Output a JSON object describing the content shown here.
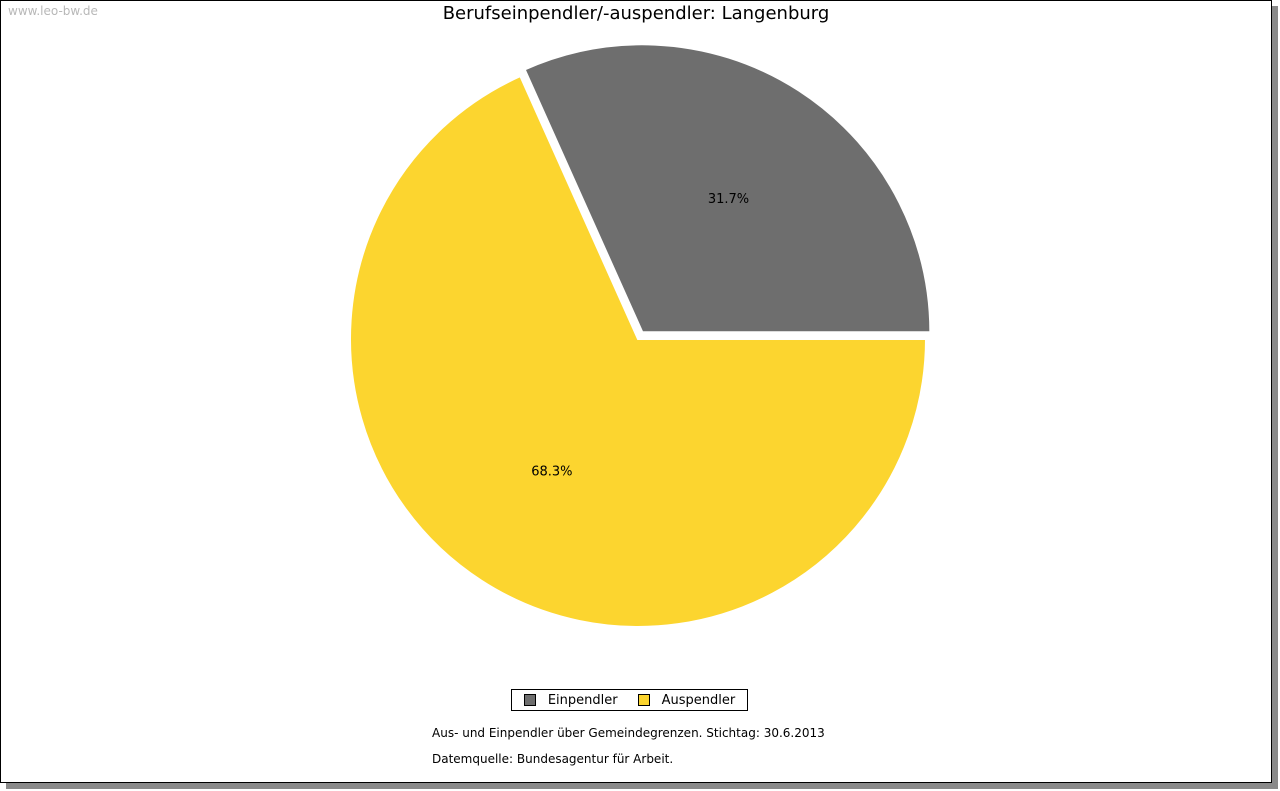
{
  "watermark": "www.leo-bw.de",
  "chart_data": {
    "type": "pie",
    "title": "Berufseinpendler/-auspendler: Langenburg",
    "slices": [
      {
        "name": "Einpendler",
        "value": 31.7,
        "label": "31.7%",
        "color": "#6e6e6e"
      },
      {
        "name": "Auspendler",
        "value": 68.3,
        "label": "68.3%",
        "color": "#fcd52f"
      }
    ],
    "legend": "bottom",
    "footnote": "Aus- und Einpendler über Gemeindegrenzen.  Stichtag: 30.6.2013",
    "source": "Datemquelle: Bundesagentur für Arbeit."
  }
}
